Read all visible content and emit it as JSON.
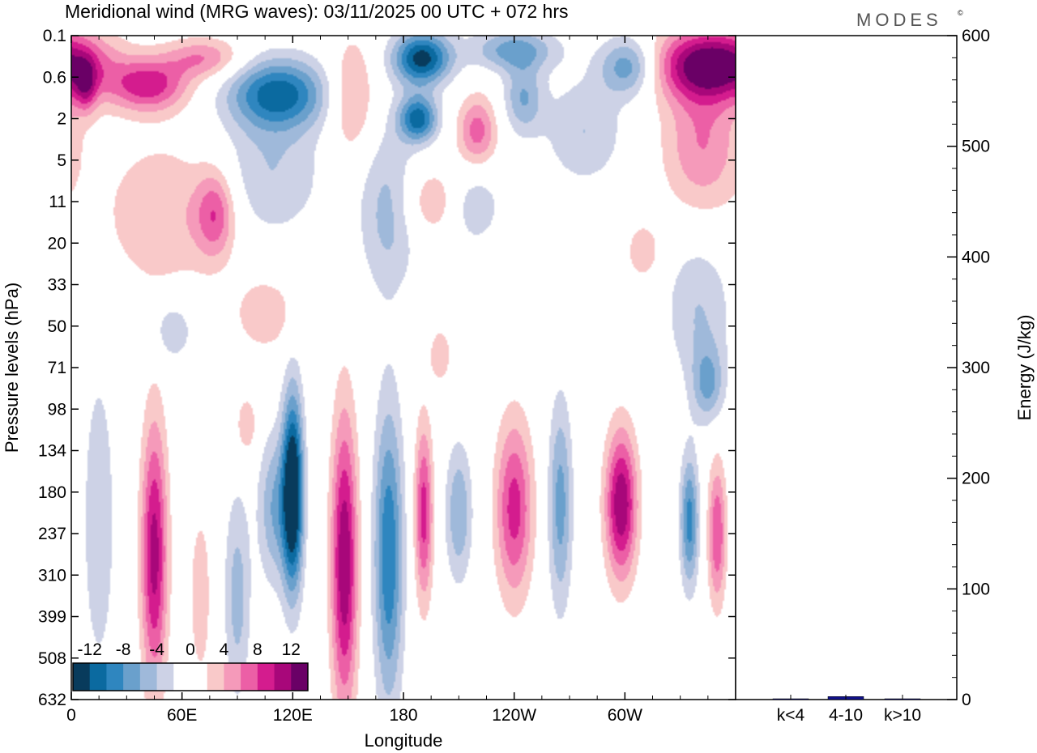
{
  "chart_data": {
    "type": "contour",
    "title": "Meridional wind (MRG waves):  03/11/2025  00 UTC  + 072 hrs",
    "brand": "MODES",
    "brand_mark": "©",
    "xlabel": "Longitude",
    "ylabel": "Pressure levels (hPa)",
    "x_ticks": [
      "0",
      "60E",
      "120E",
      "180",
      "120W",
      "60W"
    ],
    "x_tick_values": [
      0,
      60,
      120,
      180,
      240,
      300
    ],
    "xlim": [
      0,
      360
    ],
    "y_ticks": [
      "0.1",
      "0.6",
      "2",
      "5",
      "11",
      "20",
      "33",
      "50",
      "71",
      "98",
      "134",
      "180",
      "237",
      "310",
      "399",
      "508",
      "632"
    ],
    "colorbar": {
      "labels": [
        "-12",
        "-8",
        "-4",
        "0",
        "4",
        "8",
        "12"
      ],
      "colors": [
        "#083b5c",
        "#0b6aa0",
        "#2f86bf",
        "#6aa0cc",
        "#9fb9da",
        "#cdd2e6",
        "#ffffff",
        "#ffffff",
        "#f9c9c9",
        "#f59aba",
        "#ec5fa6",
        "#d41c8e",
        "#a8077a",
        "#6a0066"
      ]
    },
    "blobs": [
      {
        "lon": 8,
        "lev": 1.2,
        "w": 8,
        "h": 0.9,
        "v": 6
      },
      {
        "lon": 42,
        "lev": 1.2,
        "w": 30,
        "h": 0.9,
        "v": 9
      },
      {
        "lon": 72,
        "lev": 0.55,
        "w": 30,
        "h": 0.7,
        "v": 6
      },
      {
        "lon": 50,
        "lev": 4.3,
        "w": 45,
        "h": 2.5,
        "v": 4
      },
      {
        "lon": 78,
        "lev": 4.3,
        "w": 15,
        "h": 1.5,
        "v": 7
      },
      {
        "lon": 112,
        "lev": 1.4,
        "w": 38,
        "h": 1.2,
        "v": -11
      },
      {
        "lon": 108,
        "lev": 3.3,
        "w": 40,
        "h": 2.2,
        "v": -4
      },
      {
        "lon": 152,
        "lev": 1.5,
        "w": 18,
        "h": 2.0,
        "v": 5
      },
      {
        "lon": 190,
        "lev": 0.55,
        "w": 22,
        "h": 0.9,
        "v": -13
      },
      {
        "lon": 188,
        "lev": 2.0,
        "w": 15,
        "h": 0.8,
        "v": -11
      },
      {
        "lon": 172,
        "lev": 4.2,
        "w": 22,
        "h": 2.8,
        "v": -5
      },
      {
        "lon": 220,
        "lev": 2.3,
        "w": 15,
        "h": 1.2,
        "v": 7
      },
      {
        "lon": 240,
        "lev": 0.35,
        "w": 32,
        "h": 0.7,
        "v": -7
      },
      {
        "lon": 245,
        "lev": 1.5,
        "w": 15,
        "h": 1.2,
        "v": -6
      },
      {
        "lon": 302,
        "lev": 0.75,
        "w": 22,
        "h": 1.0,
        "v": -8
      },
      {
        "lon": 278,
        "lev": 2.3,
        "w": 30,
        "h": 1.8,
        "v": -4
      },
      {
        "lon": 348,
        "lev": 0.7,
        "w": 45,
        "h": 1.2,
        "v": 14
      },
      {
        "lon": 342,
        "lev": 2.6,
        "w": 30,
        "h": 2.4,
        "v": 6
      },
      {
        "lon": 218,
        "lev": 4.1,
        "w": 20,
        "h": 1.3,
        "v": -4
      },
      {
        "lon": 195,
        "lev": 4.0,
        "w": 25,
        "h": 1.2,
        "v": 4
      },
      {
        "lon": 310,
        "lev": 5.2,
        "w": 12,
        "h": 0.9,
        "v": 4
      },
      {
        "lon": 340,
        "lev": 6.6,
        "w": 25,
        "h": 2.5,
        "v": -4
      },
      {
        "lon": 105,
        "lev": 6.7,
        "w": 22,
        "h": 1.2,
        "v": 4
      },
      {
        "lon": 55,
        "lev": 7.1,
        "w": 15,
        "h": 1.0,
        "v": -4
      },
      {
        "lon": 200,
        "lev": 7.7,
        "w": 8,
        "h": 0.9,
        "v": 4
      },
      {
        "lon": 345,
        "lev": 8.4,
        "w": 12,
        "h": 1.3,
        "v": -6
      },
      {
        "lon": 15,
        "lev": 11.7,
        "w": 12,
        "h": 5.0,
        "v": -4
      },
      {
        "lon": 45,
        "lev": 12.5,
        "w": 10,
        "h": 4.5,
        "v": 11
      },
      {
        "lon": 90,
        "lev": 13.5,
        "w": 10,
        "h": 3.5,
        "v": -5
      },
      {
        "lon": 120,
        "lev": 11.0,
        "w": 8,
        "h": 3.3,
        "v": -16
      },
      {
        "lon": 110,
        "lev": 11.4,
        "w": 12,
        "h": 2.5,
        "v": -6
      },
      {
        "lon": 95,
        "lev": 9.4,
        "w": 8,
        "h": 1.0,
        "v": 4
      },
      {
        "lon": 148,
        "lev": 12.7,
        "w": 10,
        "h": 5.0,
        "v": 12
      },
      {
        "lon": 172,
        "lev": 12.5,
        "w": 11,
        "h": 5.0,
        "v": -10
      },
      {
        "lon": 191,
        "lev": 11.5,
        "w": 7,
        "h": 3.0,
        "v": 9
      },
      {
        "lon": 210,
        "lev": 11.5,
        "w": 10,
        "h": 2.3,
        "v": -6
      },
      {
        "lon": 240,
        "lev": 11.4,
        "w": 14,
        "h": 3.0,
        "v": 9
      },
      {
        "lon": 265,
        "lev": 11.3,
        "w": 9,
        "h": 3.5,
        "v": -7
      },
      {
        "lon": 298,
        "lev": 11.3,
        "w": 12,
        "h": 2.5,
        "v": 12
      },
      {
        "lon": 335,
        "lev": 11.7,
        "w": 7,
        "h": 2.2,
        "v": -9
      },
      {
        "lon": 350,
        "lev": 12.0,
        "w": 7,
        "h": 2.4,
        "v": 8
      },
      {
        "lon": 70,
        "lev": 13.5,
        "w": 10,
        "h": 3.5,
        "v": 3
      }
    ],
    "energy_bars": {
      "categories": [
        "k<4",
        "4-10",
        "k>10"
      ],
      "values": [
        0,
        2,
        0
      ],
      "ylabel": "Energy (J/kg)",
      "ylim": [
        0,
        600
      ],
      "y_ticks": [
        "0",
        "100",
        "200",
        "300",
        "400",
        "500",
        "600"
      ]
    }
  }
}
